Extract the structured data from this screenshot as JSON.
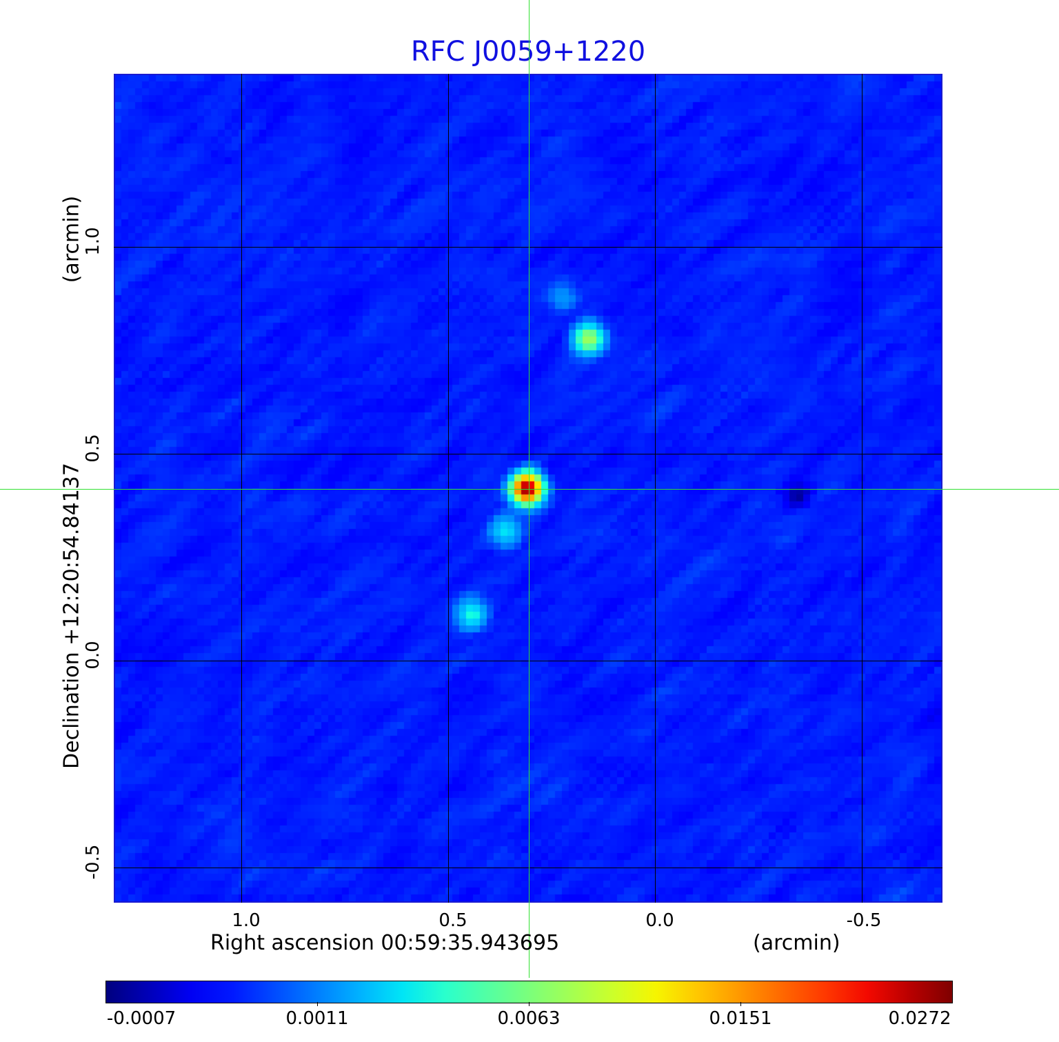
{
  "chart_data": {
    "type": "heatmap",
    "title": "RFC J0059+1220",
    "xlabel": "Right ascension  00:59:35.943695",
    "xunit": "(arcmin)",
    "ylabel": "Declination  +12:20:54.84137",
    "yunit": "(arcmin)",
    "xlim": [
      1.305,
      -0.698
    ],
    "ylim": [
      -0.585,
      1.418
    ],
    "xticks": [
      "1.0",
      "0.5",
      "0.0",
      "-0.5"
    ],
    "xtick_values": [
      1.0,
      0.5,
      0.0,
      -0.5
    ],
    "yticks": [
      "1.0",
      "0.5",
      "0.0",
      "-0.5"
    ],
    "ytick_values": [
      1.0,
      0.5,
      0.0,
      -0.5
    ],
    "grid": true,
    "crosshair": {
      "ra": 0.305,
      "dec": 0.415
    },
    "colormap": "jet",
    "colorbar": {
      "ticks": [
        "-0.0007",
        "0.0011",
        "0.0063",
        "0.0151",
        "0.0272"
      ],
      "tick_values": [
        -0.0007,
        0.0011,
        0.0063,
        0.0151,
        0.0272
      ],
      "placement": "bottom"
    },
    "background_level": 0.0004,
    "noise": 0.0003,
    "sources": [
      {
        "ra": 0.305,
        "dec": 0.415,
        "peak": 0.0272
      },
      {
        "ra": 0.155,
        "dec": 0.778,
        "peak": 0.0075
      },
      {
        "ra": 0.358,
        "dec": 0.31,
        "peak": 0.0028
      },
      {
        "ra": 0.44,
        "dec": 0.11,
        "peak": 0.0035
      },
      {
        "ra": 0.22,
        "dec": 0.88,
        "peak": 0.0012
      },
      {
        "ra": -0.35,
        "dec": 0.4,
        "peak": -0.0009
      }
    ]
  }
}
